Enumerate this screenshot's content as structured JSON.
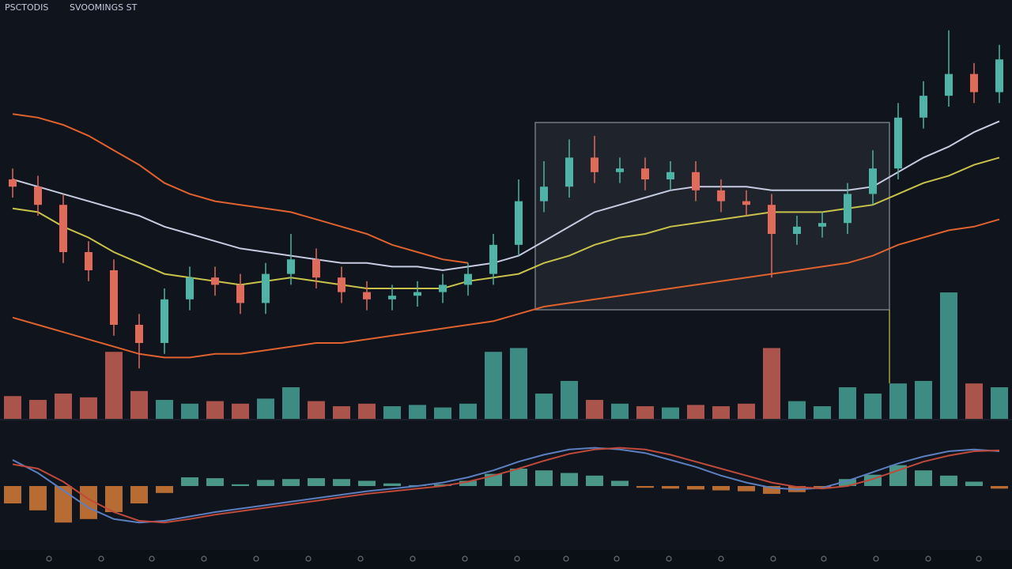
{
  "header": {
    "texts": [
      "PSCTODIS",
      "SVOOMINGS ST"
    ]
  },
  "chart_data": [
    {
      "type": "candlestick",
      "ylim": [
        0,
        100
      ],
      "up_color": "#4fb3a6",
      "down_color": "#e06a5c",
      "open": [
        55,
        53,
        48,
        35,
        30,
        15,
        10,
        22,
        28,
        26,
        21,
        29,
        33,
        28,
        24,
        22,
        23,
        24,
        26,
        29,
        37,
        49,
        53,
        61,
        57,
        58,
        55,
        57,
        52,
        49,
        48,
        40,
        42,
        43,
        51,
        58,
        72,
        78,
        84,
        79
      ],
      "high": [
        58,
        56,
        51,
        38,
        33,
        18,
        25,
        31,
        31,
        29,
        32,
        40,
        36,
        31,
        27,
        26,
        27,
        29,
        32,
        40,
        55,
        60,
        66,
        67,
        61,
        61,
        60,
        60,
        55,
        52,
        51,
        45,
        46,
        54,
        63,
        76,
        82,
        96,
        87,
        92
      ],
      "low": [
        50,
        45,
        32,
        27,
        12,
        3,
        7,
        19,
        23,
        18,
        18,
        26,
        25,
        21,
        19,
        19,
        20,
        21,
        23,
        26,
        34,
        46,
        50,
        54,
        54,
        52,
        52,
        49,
        46,
        45,
        28,
        37,
        39,
        40,
        48,
        55,
        69,
        75,
        76,
        76
      ],
      "close": [
        53,
        48,
        35,
        30,
        15,
        10,
        22,
        28,
        26,
        21,
        29,
        33,
        28,
        24,
        22,
        23,
        24,
        26,
        29,
        37,
        49,
        53,
        61,
        57,
        58,
        55,
        57,
        52,
        49,
        48,
        40,
        42,
        43,
        51,
        58,
        72,
        78,
        84,
        79,
        88
      ],
      "series": [
        {
          "color": "#c5cbe0",
          "values": [
            55,
            53,
            51,
            49,
            47,
            45,
            42,
            40,
            38,
            36,
            35,
            34,
            33,
            32,
            32,
            31,
            31,
            30,
            31,
            32,
            34,
            38,
            42,
            46,
            48,
            50,
            52,
            53,
            53,
            53,
            52,
            52,
            52,
            52,
            53,
            57,
            61,
            64,
            68,
            71
          ]
        },
        {
          "color": "#c9c24a",
          "values": [
            47,
            46,
            42,
            39,
            35,
            32,
            29,
            28,
            27,
            26,
            27,
            28,
            27,
            26,
            25,
            25,
            25,
            25,
            27,
            28,
            29,
            32,
            34,
            37,
            39,
            40,
            42,
            43,
            44,
            45,
            46,
            46,
            46,
            47,
            48,
            51,
            54,
            56,
            59,
            61
          ]
        },
        {
          "color": "#e0622e",
          "values": [
            73,
            72,
            70,
            67,
            63,
            59,
            54,
            51,
            49,
            48,
            47,
            46,
            44,
            42,
            40,
            37,
            35,
            33,
            32,
            null,
            null,
            null,
            null,
            null,
            null,
            null,
            null,
            null,
            null,
            null,
            null,
            null,
            null,
            null,
            null,
            null,
            null,
            null,
            null,
            null
          ]
        },
        {
          "color": "#e0622e",
          "values": [
            17,
            15,
            13,
            11,
            9,
            7,
            6,
            6,
            7,
            7,
            8,
            9,
            10,
            10,
            11,
            12,
            13,
            14,
            15,
            16,
            18,
            20,
            21,
            22,
            23,
            24,
            25,
            26,
            27,
            28,
            29,
            30,
            31,
            32,
            34,
            37,
            39,
            41,
            42,
            44
          ]
        }
      ]
    },
    {
      "type": "bar",
      "ylim": [
        0,
        100
      ],
      "values": [
        18,
        15,
        20,
        17,
        53,
        22,
        15,
        12,
        14,
        12,
        16,
        25,
        14,
        10,
        12,
        10,
        11,
        9,
        12,
        53,
        56,
        20,
        30,
        15,
        12,
        10,
        9,
        11,
        10,
        12,
        56,
        14,
        10,
        25,
        20,
        28,
        30,
        100,
        28,
        25
      ]
    },
    {
      "type": "bar",
      "ylim": [
        -50,
        50
      ],
      "pos_color": "#5fc2ae",
      "neg_color": "#f08a3c",
      "values": [
        -20,
        -28,
        -42,
        -38,
        -30,
        -20,
        -8,
        10,
        9,
        2,
        7,
        8,
        9,
        8,
        6,
        3,
        1,
        2,
        6,
        14,
        20,
        18,
        15,
        12,
        6,
        -2,
        -3,
        -4,
        -5,
        -6,
        -9,
        -7,
        -3,
        8,
        13,
        24,
        18,
        12,
        5,
        -3
      ],
      "series": [
        {
          "color": "#5c7fc0",
          "values": [
            30,
            15,
            -5,
            -25,
            -38,
            -42,
            -40,
            -35,
            -30,
            -26,
            -22,
            -18,
            -14,
            -10,
            -6,
            -3,
            0,
            4,
            10,
            18,
            28,
            36,
            42,
            44,
            42,
            38,
            30,
            22,
            12,
            4,
            -2,
            -4,
            -2,
            6,
            16,
            26,
            34,
            40,
            42,
            40
          ]
        },
        {
          "color": "#c04a3a",
          "values": [
            25,
            20,
            5,
            -15,
            -30,
            -40,
            -42,
            -38,
            -33,
            -29,
            -25,
            -21,
            -17,
            -13,
            -9,
            -6,
            -3,
            0,
            5,
            12,
            20,
            29,
            37,
            42,
            44,
            42,
            36,
            28,
            20,
            12,
            4,
            -1,
            -3,
            0,
            8,
            18,
            28,
            35,
            40,
            41
          ]
        }
      ]
    }
  ]
}
